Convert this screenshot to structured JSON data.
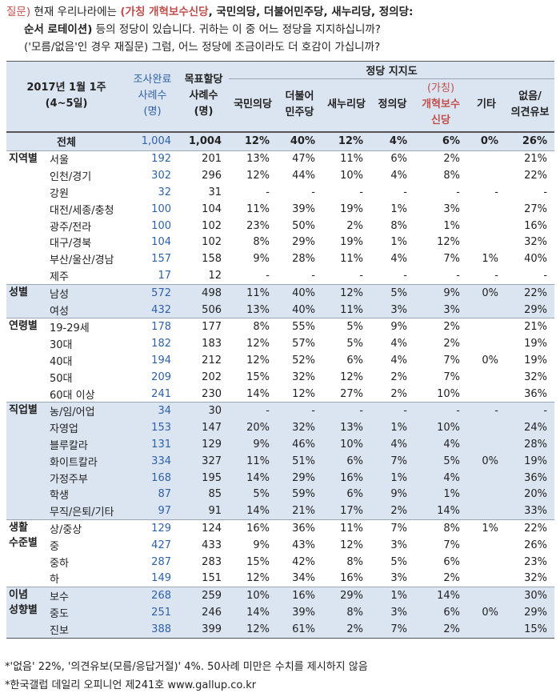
{
  "question": {
    "label": "질문)",
    "line1_pre": "현재 우리나라에는 ",
    "line1_bold": "(가칭 개혁보수신당",
    "line1_bold2": ", 국민의당, 더불어민주당, 새누리당, 정의당:",
    "line2_bold": "순서 로테이션)",
    "line2_rest": " 등의 정당이 있습니다. 귀하는 이 중 어느 정당을 지지하십니까?",
    "line3": "('모름/없음'인 경우 재질문) 그럼, 어느 정당에 조금이라도 더 호감이 가십니까?"
  },
  "header": {
    "date_line1": "2017년 1월 1주",
    "date_line2": "(4~5일)",
    "survey_line1": "조사완료",
    "survey_line2": "사례수",
    "survey_line3": "(명)",
    "target_line1": "목표할당",
    "target_line2": "사례수",
    "target_line3": "(명)",
    "support_title": "정당 지지도",
    "col_people": "국민의당",
    "col_minjoo_1": "더불어",
    "col_minjoo_2": "민주당",
    "col_saenuri": "새누리당",
    "col_justice": "정의당",
    "col_reform_1": "(가칭)",
    "col_reform_2": "개혁보수",
    "col_reform_3": "신당",
    "col_other": "기타",
    "col_none_1": "없음/",
    "col_none_2": "의견유보"
  },
  "total": {
    "label": "전체",
    "surveyed": "1,004",
    "target": "1,004",
    "people": "12%",
    "minjoo": "40%",
    "saenuri": "12%",
    "justice": "4%",
    "reform": "6%",
    "other": "0%",
    "none": "26%"
  },
  "groups": [
    {
      "cat": "지역별",
      "shaded": false,
      "rows": [
        {
          "sub": "서울",
          "s": "192",
          "t": "201",
          "v": [
            "13%",
            "47%",
            "11%",
            "6%",
            "2%",
            "",
            "21%"
          ]
        },
        {
          "sub": "인천/경기",
          "s": "302",
          "t": "296",
          "v": [
            "12%",
            "44%",
            "10%",
            "4%",
            "8%",
            "",
            "22%"
          ]
        },
        {
          "sub": "강원",
          "s": "32",
          "t": "31",
          "v": [
            "-",
            "-",
            "-",
            "-",
            "-",
            "-",
            "-"
          ]
        },
        {
          "sub": "대전/세종/충청",
          "s": "100",
          "t": "104",
          "v": [
            "11%",
            "39%",
            "19%",
            "1%",
            "3%",
            "",
            "27%"
          ]
        },
        {
          "sub": "광주/전라",
          "s": "100",
          "t": "102",
          "v": [
            "23%",
            "50%",
            "2%",
            "8%",
            "1%",
            "",
            "16%"
          ]
        },
        {
          "sub": "대구/경북",
          "s": "104",
          "t": "102",
          "v": [
            "8%",
            "29%",
            "19%",
            "1%",
            "12%",
            "",
            "32%"
          ]
        },
        {
          "sub": "부산/울산/경남",
          "s": "157",
          "t": "158",
          "v": [
            "9%",
            "28%",
            "11%",
            "4%",
            "7%",
            "1%",
            "40%"
          ]
        },
        {
          "sub": "제주",
          "s": "17",
          "t": "12",
          "v": [
            "-",
            "-",
            "-",
            "-",
            "-",
            "-",
            "-"
          ]
        }
      ]
    },
    {
      "cat": "성별",
      "shaded": true,
      "rows": [
        {
          "sub": "남성",
          "s": "572",
          "t": "498",
          "v": [
            "11%",
            "40%",
            "12%",
            "5%",
            "9%",
            "0%",
            "22%"
          ]
        },
        {
          "sub": "여성",
          "s": "432",
          "t": "506",
          "v": [
            "13%",
            "40%",
            "11%",
            "3%",
            "3%",
            "",
            "29%"
          ]
        }
      ]
    },
    {
      "cat": "연령별",
      "shaded": false,
      "rows": [
        {
          "sub": "19-29세",
          "s": "178",
          "t": "177",
          "v": [
            "8%",
            "55%",
            "5%",
            "9%",
            "2%",
            "",
            "21%"
          ]
        },
        {
          "sub": "30대",
          "s": "182",
          "t": "183",
          "v": [
            "12%",
            "57%",
            "5%",
            "4%",
            "2%",
            "",
            "19%"
          ]
        },
        {
          "sub": "40대",
          "s": "194",
          "t": "212",
          "v": [
            "12%",
            "52%",
            "6%",
            "4%",
            "7%",
            "0%",
            "19%"
          ]
        },
        {
          "sub": "50대",
          "s": "209",
          "t": "202",
          "v": [
            "15%",
            "32%",
            "12%",
            "2%",
            "7%",
            "",
            "32%"
          ]
        },
        {
          "sub": "60대 이상",
          "s": "241",
          "t": "230",
          "v": [
            "14%",
            "12%",
            "27%",
            "2%",
            "10%",
            "",
            "36%"
          ]
        }
      ]
    },
    {
      "cat": "직업별",
      "shaded": true,
      "rows": [
        {
          "sub": "농/임/어업",
          "s": "34",
          "t": "30",
          "v": [
            "-",
            "-",
            "-",
            "-",
            "-",
            "-",
            "-"
          ]
        },
        {
          "sub": "자영업",
          "s": "153",
          "t": "147",
          "v": [
            "20%",
            "32%",
            "13%",
            "1%",
            "10%",
            "",
            "24%"
          ]
        },
        {
          "sub": "블루칼라",
          "s": "131",
          "t": "129",
          "v": [
            "9%",
            "46%",
            "10%",
            "4%",
            "4%",
            "",
            "28%"
          ]
        },
        {
          "sub": "화이트칼라",
          "s": "334",
          "t": "327",
          "v": [
            "11%",
            "51%",
            "6%",
            "7%",
            "5%",
            "0%",
            "19%"
          ]
        },
        {
          "sub": "가정주부",
          "s": "168",
          "t": "195",
          "v": [
            "14%",
            "29%",
            "16%",
            "1%",
            "4%",
            "",
            "36%"
          ]
        },
        {
          "sub": "학생",
          "s": "87",
          "t": "85",
          "v": [
            "5%",
            "59%",
            "6%",
            "9%",
            "1%",
            "",
            "20%"
          ]
        },
        {
          "sub": "무직/은퇴/기타",
          "s": "97",
          "t": "91",
          "v": [
            "14%",
            "21%",
            "17%",
            "2%",
            "14%",
            "",
            "33%"
          ]
        }
      ]
    },
    {
      "cat": "생활",
      "cat2": "수준별",
      "shaded": false,
      "rows": [
        {
          "sub": "상/중상",
          "s": "129",
          "t": "124",
          "v": [
            "16%",
            "36%",
            "11%",
            "7%",
            "8%",
            "1%",
            "22%"
          ]
        },
        {
          "sub": "중",
          "s": "427",
          "t": "433",
          "v": [
            "9%",
            "43%",
            "12%",
            "3%",
            "7%",
            "",
            "26%"
          ]
        },
        {
          "sub": "중하",
          "s": "287",
          "t": "283",
          "v": [
            "15%",
            "42%",
            "8%",
            "5%",
            "6%",
            "",
            "23%"
          ]
        },
        {
          "sub": "하",
          "s": "149",
          "t": "151",
          "v": [
            "12%",
            "34%",
            "16%",
            "3%",
            "2%",
            "",
            "32%"
          ]
        }
      ]
    },
    {
      "cat": "이념",
      "cat2": "성향별",
      "shaded": true,
      "rows": [
        {
          "sub": "보수",
          "s": "268",
          "t": "259",
          "v": [
            "10%",
            "16%",
            "29%",
            "1%",
            "14%",
            "",
            "30%"
          ]
        },
        {
          "sub": "중도",
          "s": "251",
          "t": "246",
          "v": [
            "14%",
            "39%",
            "8%",
            "3%",
            "6%",
            "0%",
            "29%"
          ]
        },
        {
          "sub": "진보",
          "s": "388",
          "t": "399",
          "v": [
            "12%",
            "61%",
            "2%",
            "7%",
            "2%",
            "",
            "15%"
          ]
        }
      ]
    }
  ],
  "footnotes": {
    "f1": "*'없음' 22%, '의견유보(모름/응답거절)' 4%. 50사례 미만은 수치를 제시하지 않음",
    "f2": "*한국갤럽 데일리 오피니언 제241호 www.gallup.co.kr"
  }
}
